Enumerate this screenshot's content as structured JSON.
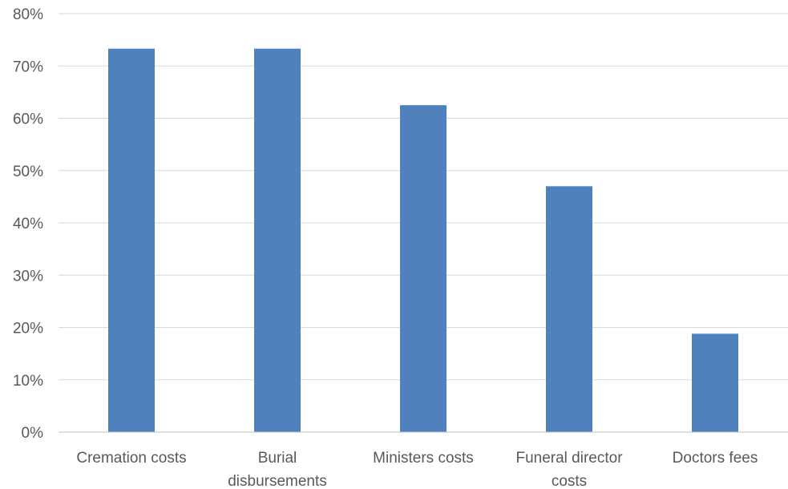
{
  "chart_data": {
    "type": "bar",
    "title": "",
    "xlabel": "",
    "ylabel": "",
    "categories": [
      [
        "Cremation costs"
      ],
      [
        "Burial",
        "disbursements"
      ],
      [
        "Ministers costs"
      ],
      [
        "Funeral director",
        "costs"
      ],
      [
        "Doctors fees"
      ]
    ],
    "series": [
      {
        "values": [
          73.3,
          73.3,
          62.5,
          47.0,
          18.8
        ]
      }
    ],
    "ylim": [
      0,
      80
    ],
    "yticks": [
      "0%",
      "10%",
      "20%",
      "30%",
      "40%",
      "50%",
      "60%",
      "70%",
      "80%"
    ],
    "ytick_values": [
      0,
      10,
      20,
      30,
      40,
      50,
      60,
      70,
      80
    ],
    "grid": true,
    "legend": "none",
    "colors": {
      "bar": "#4f81bd"
    }
  }
}
